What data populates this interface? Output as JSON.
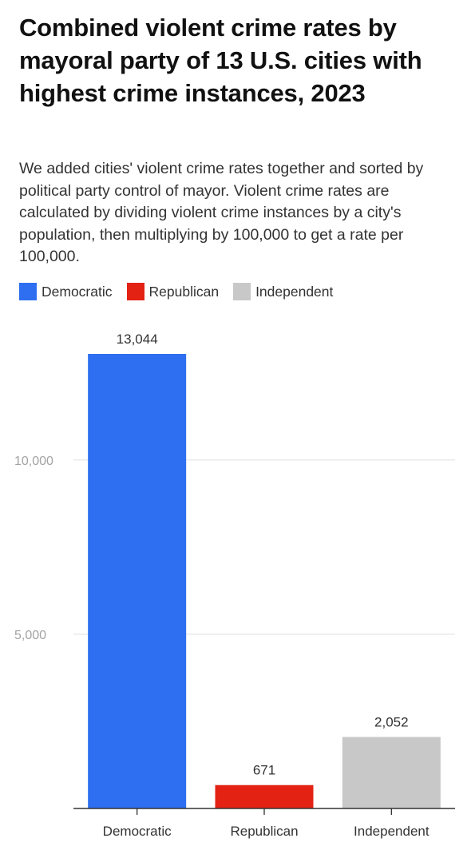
{
  "title": "Combined violent crime rates by mayoral party of 13 U.S. cities with highest crime instances, 2023",
  "subtitle": "We added cities' violent crime rates together and sorted by political party control of mayor. Violent crime rates are calculated by dividing violent crime instances by a city's population, then multiplying by 100,000 to get a rate per 100,000.",
  "chart_data": {
    "type": "bar",
    "title": "Combined violent crime rates by mayoral party of 13 U.S. cities with highest crime instances, 2023",
    "xlabel": "",
    "ylabel": "",
    "categories": [
      "Democratic",
      "Republican",
      "Independent"
    ],
    "values": [
      13044,
      671,
      2052
    ],
    "value_labels": [
      "13,044",
      "671",
      "2,052"
    ],
    "colors": [
      "#2d6ff0",
      "#e32214",
      "#c8c8c8"
    ],
    "ylim": [
      0,
      13044
    ],
    "yticks": [
      5000,
      10000
    ],
    "ytick_labels": [
      "5,000",
      "10,000"
    ],
    "grid": true,
    "legend_placement": "top-left",
    "legend": [
      {
        "label": "Democratic",
        "color": "#2d6ff0"
      },
      {
        "label": "Republican",
        "color": "#e32214"
      },
      {
        "label": "Independent",
        "color": "#c8c8c8"
      }
    ]
  }
}
